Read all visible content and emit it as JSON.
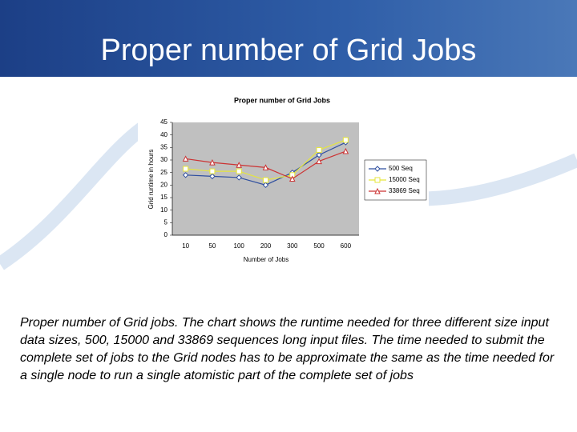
{
  "slide": {
    "title": "Proper number of Grid Jobs",
    "caption": "Proper number of Grid jobs. The chart shows the runtime needed for three different size input data sizes, 500, 15000 and 33869 sequences long input files. The time needed to submit the complete set of jobs to the Grid nodes has to be approximate the same as the time needed for a single node to run a single atomistic part of the complete set of jobs"
  },
  "chart_data": {
    "type": "line",
    "title": "Proper number of Grid Jobs",
    "x_label": "Number of Jobs",
    "y_label": "Grid runtime in hours",
    "categories": [
      "10",
      "50",
      "100",
      "200",
      "300",
      "500",
      "600"
    ],
    "series": [
      {
        "name": "500 Seq",
        "color": "#2f4f9f",
        "marker": "diamond",
        "values": [
          24,
          23.5,
          23,
          20,
          25,
          32,
          37
        ]
      },
      {
        "name": "15000 Seq",
        "color": "#e6e63c",
        "marker": "square",
        "values": [
          26.5,
          25.5,
          25.5,
          22,
          24,
          34,
          38
        ]
      },
      {
        "name": "33869 Seq",
        "color": "#cc3333",
        "marker": "triangle",
        "values": [
          30.5,
          29,
          28,
          27,
          22.5,
          29.5,
          33.5
        ]
      }
    ],
    "ylim": [
      0,
      45
    ],
    "yticks": [
      0,
      5,
      10,
      15,
      20,
      25,
      30,
      35,
      40,
      45
    ],
    "grid": false,
    "legend": "right"
  }
}
